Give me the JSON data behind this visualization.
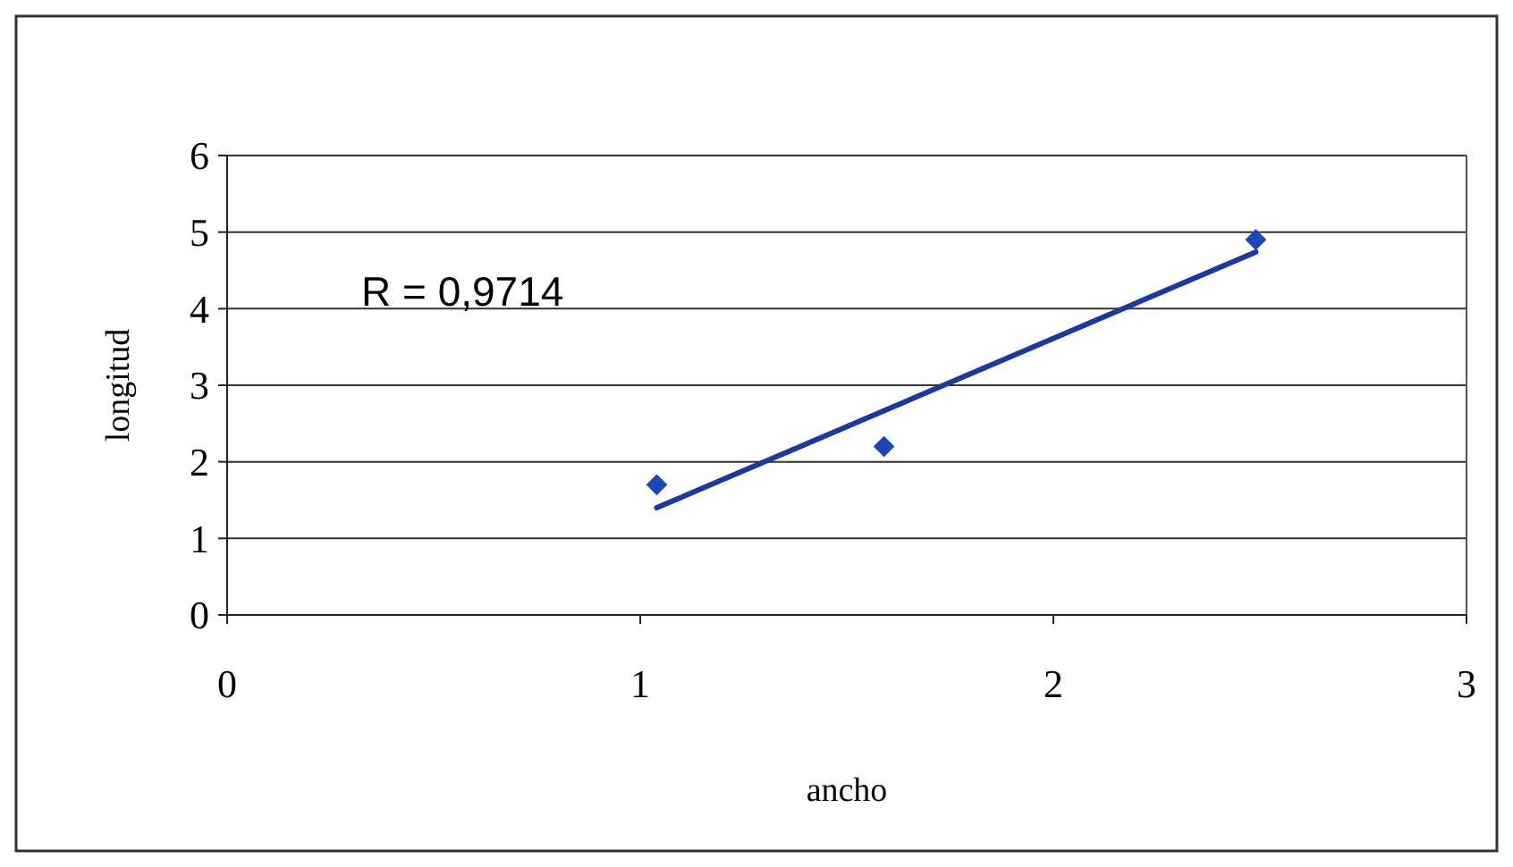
{
  "chart_data": {
    "type": "scatter",
    "xlabel": "ancho",
    "ylabel": "longitud",
    "xlim": [
      0,
      3
    ],
    "xticks": [
      0,
      1,
      2,
      3
    ],
    "ylim": [
      0,
      6
    ],
    "yticks": [
      0,
      1,
      2,
      3,
      4,
      5,
      6
    ],
    "grid": "y",
    "marker": "diamond",
    "annotations": [
      "R = 0,9714"
    ],
    "series": [
      {
        "color": "#1f46b4",
        "x": [
          1.04,
          1.59,
          2.49
        ],
        "values": [
          1.7,
          2.2,
          4.9
        ]
      },
      {
        "type": "line",
        "color": "#1a3a9c",
        "marker": "none",
        "line_style": "solid",
        "x": [
          1.04,
          2.49
        ],
        "values": [
          1.4,
          4.74
        ]
      }
    ]
  }
}
